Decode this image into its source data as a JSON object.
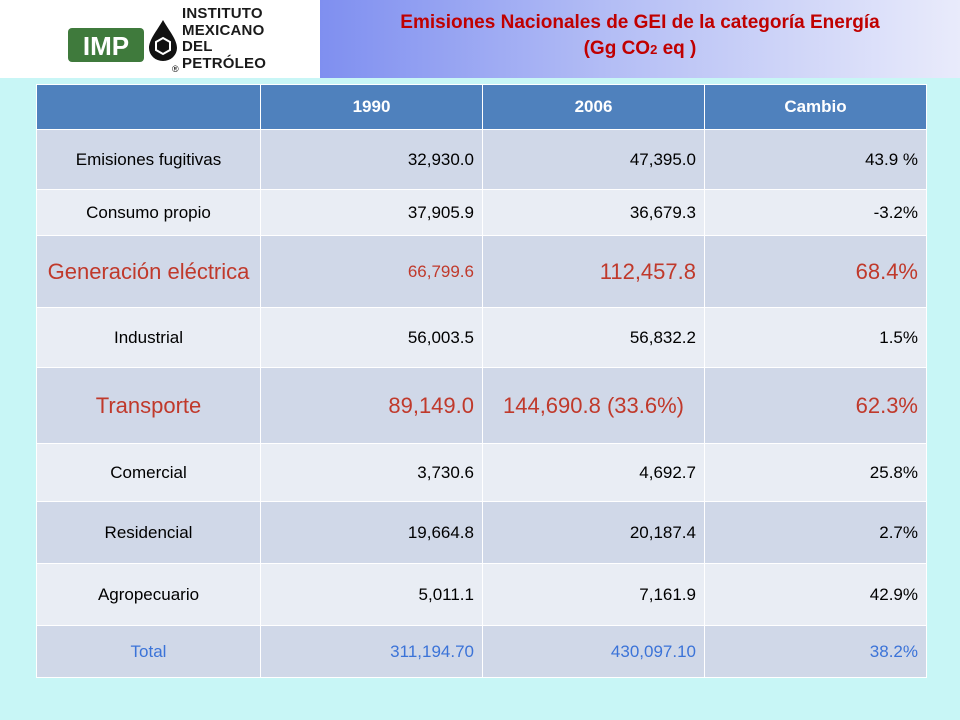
{
  "logo": {
    "mark_text": "IMP",
    "name_lines": [
      "INSTITUTO",
      "MEXICANO",
      "DEL",
      "PETRÓLEO"
    ],
    "registered": "®"
  },
  "title": {
    "line1": "Emisiones Nacionales de GEI de la categoría Energía",
    "line2_main": "(Gg CO",
    "line2_sub": "2",
    "line2_end": " eq )"
  },
  "table": {
    "headers": [
      "",
      "1990",
      "2006",
      "Cambio"
    ],
    "rows": [
      {
        "label": "Emisiones fugitivas",
        "v1990": "32,930.0",
        "v2006": "47,395.0",
        "cambio": "43.9 %"
      },
      {
        "label": "Consumo propio",
        "v1990": "37,905.9",
        "v2006": "36,679.3",
        "cambio": "-3.2%"
      },
      {
        "label": "Generación eléctrica",
        "v1990": "66,799.6",
        "v2006": "112,457.8",
        "cambio": "68.4%"
      },
      {
        "label": "Industrial",
        "v1990": "56,003.5",
        "v2006": "56,832.2",
        "cambio": "1.5%"
      },
      {
        "label": "Transporte",
        "v1990": "89,149.0",
        "v2006": "144,690.8 (33.6%)",
        "cambio": "62.3%"
      },
      {
        "label": "Comercial",
        "v1990": "3,730.6",
        "v2006": "4,692.7",
        "cambio": "25.8%"
      },
      {
        "label": "Residencial",
        "v1990": "19,664.8",
        "v2006": "20,187.4",
        "cambio": "2.7%"
      },
      {
        "label": "Agropecuario",
        "v1990": "5,011.1",
        "v2006": "7,161.9",
        "cambio": "42.9%"
      },
      {
        "label": "Total",
        "v1990": "311,194.70",
        "v2006": "430,097.10",
        "cambio": "38.2%"
      }
    ]
  },
  "colors": {
    "header_fill": "#4f81bd",
    "row_light": "#e9edf4",
    "row_dark": "#d0d8e8",
    "highlight_red": "#c0392b",
    "total_blue": "#3b73d8",
    "title_red": "#c00000"
  }
}
